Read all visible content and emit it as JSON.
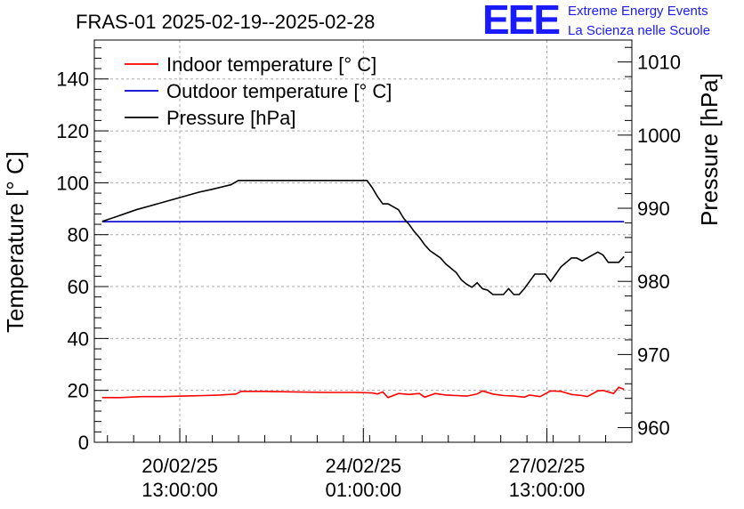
{
  "chart_data": {
    "type": "line",
    "title": "FRAS-01 2025-02-19--2025-02-28",
    "logo": {
      "mark": "EEE",
      "line1": "Extreme Energy Events",
      "line2": "La Scienza nelle Scuole"
    },
    "ylabel_left": "Temperature [° C]",
    "ylabel_right": "Pressure [hPa]",
    "ylim_left": [
      0,
      155
    ],
    "ylim_right": [
      958,
      1013
    ],
    "xlim": [
      0,
      10.25
    ],
    "yticks_left": [
      0,
      20,
      40,
      60,
      80,
      100,
      120,
      140
    ],
    "yticks_right": [
      960,
      970,
      980,
      990,
      1000,
      1010
    ],
    "xticks": [
      {
        "x": 1.63,
        "line1": "20/02/25",
        "line2": "13:00:00"
      },
      {
        "x": 5.13,
        "line1": "24/02/25",
        "line2": "01:00:00"
      },
      {
        "x": 8.63,
        "line1": "27/02/25",
        "line2": "13:00:00"
      }
    ],
    "grid": true,
    "legend_position": "top-left",
    "series": [
      {
        "name": "Indoor temperature [° C]",
        "axis": "left",
        "color": "#ff0000",
        "x": [
          0.15,
          0.5,
          0.9,
          1.3,
          1.7,
          2.1,
          2.4,
          2.7,
          2.8,
          3.2,
          3.8,
          4.4,
          5.0,
          5.3,
          5.4,
          5.5,
          5.6,
          5.8,
          6.0,
          6.2,
          6.3,
          6.5,
          6.7,
          6.9,
          7.1,
          7.3,
          7.4,
          7.6,
          7.8,
          8.0,
          8.2,
          8.3,
          8.5,
          8.7,
          8.9,
          9.1,
          9.3,
          9.4,
          9.6,
          9.7,
          9.9,
          10.0,
          10.1
        ],
        "y": [
          17.2,
          17.2,
          17.6,
          17.6,
          17.8,
          18.0,
          18.2,
          18.6,
          19.6,
          19.6,
          19.4,
          19.2,
          19.2,
          19.0,
          18.6,
          19.4,
          17.2,
          18.8,
          18.4,
          18.8,
          17.4,
          18.8,
          18.2,
          18.0,
          17.8,
          18.6,
          19.8,
          18.6,
          18.0,
          17.8,
          17.4,
          18.2,
          17.6,
          19.8,
          19.6,
          18.4,
          18.0,
          17.6,
          19.8,
          20.0,
          18.8,
          21.2,
          20.4
        ]
      },
      {
        "name": "Outdoor temperature [° C]",
        "axis": "left",
        "color": "#0000cc",
        "x": [
          0.15,
          10.1
        ],
        "y": [
          85.0,
          85.0
        ]
      },
      {
        "name": "Pressure [hPa]",
        "axis": "right",
        "color": "#000000",
        "x": [
          0.15,
          0.4,
          0.8,
          1.2,
          1.6,
          2.0,
          2.25,
          2.6,
          2.75,
          2.8,
          3.2,
          3.6,
          4.0,
          4.4,
          4.8,
          5.0,
          5.2,
          5.3,
          5.4,
          5.5,
          5.6,
          5.8,
          5.9,
          6.0,
          6.1,
          6.2,
          6.3,
          6.4,
          6.6,
          6.7,
          6.9,
          7.0,
          7.1,
          7.2,
          7.3,
          7.4,
          7.5,
          7.6,
          7.8,
          7.9,
          8.0,
          8.1,
          8.2,
          8.3,
          8.4,
          8.6,
          8.7,
          8.8,
          8.9,
          9.0,
          9.1,
          9.2,
          9.3,
          9.4,
          9.5,
          9.6,
          9.7,
          9.8,
          10.0,
          10.1
        ],
        "y": [
          988.2,
          988.8,
          989.8,
          990.6,
          991.4,
          992.2,
          992.6,
          993.2,
          993.8,
          993.8,
          993.8,
          993.8,
          993.8,
          993.8,
          993.8,
          993.8,
          993.8,
          992.8,
          991.6,
          990.6,
          990.6,
          989.8,
          988.6,
          987.8,
          986.8,
          986.0,
          985.0,
          984.2,
          983.2,
          982.4,
          981.2,
          980.2,
          979.6,
          979.2,
          979.8,
          979.0,
          978.8,
          978.2,
          978.2,
          979.0,
          978.2,
          978.2,
          979.0,
          980.0,
          981.0,
          981.0,
          980.0,
          981.0,
          982.0,
          982.6,
          983.2,
          983.2,
          982.8,
          983.2,
          983.6,
          984.0,
          983.6,
          982.6,
          982.6,
          983.4
        ]
      }
    ]
  }
}
